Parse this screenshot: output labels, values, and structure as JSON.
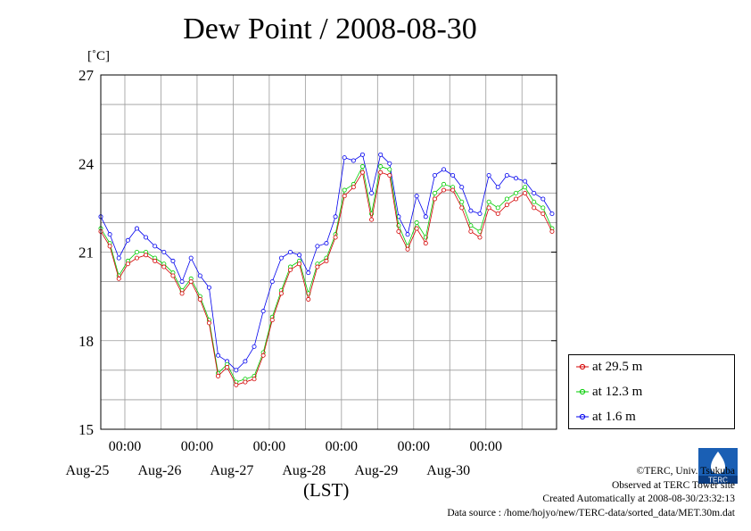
{
  "title": "Dew Point / 2008-08-30",
  "unit_label": "[˚C]",
  "x_axis_label": "(LST)",
  "credits": {
    "copyright": "©TERC, Univ. Tsukuba",
    "observed": "Observed at TERC Tower site",
    "created": "Created Automatically at 2008-08-30/23:32:13",
    "source": "Data source : /home/hojyo/new/TERC-data/sorted_data/MET.30m.dat"
  },
  "logo_text": "TERC",
  "colors": {
    "s1": "#d40000",
    "s2": "#00cc00",
    "s3": "#0000ee",
    "grid": "#9a9a9a"
  },
  "chart_data": {
    "type": "line",
    "title": "Dew Point / 2008-08-30",
    "ylabel": "[˚C]",
    "xlabel": "(LST)",
    "ylim": [
      15,
      27
    ],
    "yticks": [
      15,
      18,
      21,
      24,
      27
    ],
    "xlim_days": [
      "2008-08-24 16:00",
      "2008-08-30 23:30"
    ],
    "xticks": [
      {
        "top": "00:00",
        "bottom": "Aug-25",
        "at": "2008-08-25 00:00"
      },
      {
        "top": "00:00",
        "bottom": "Aug-26",
        "at": "2008-08-26 00:00"
      },
      {
        "top": "00:00",
        "bottom": "Aug-27",
        "at": "2008-08-27 00:00"
      },
      {
        "top": "00:00",
        "bottom": "Aug-28",
        "at": "2008-08-28 00:00"
      },
      {
        "top": "00:00",
        "bottom": "Aug-29",
        "at": "2008-08-29 00:00"
      },
      {
        "top": "00:00",
        "bottom": "Aug-30",
        "at": "2008-08-30 00:00"
      }
    ],
    "grid": true,
    "legend_position": "right",
    "x": [
      "08-24 16:00",
      "08-24 19:00",
      "08-24 22:00",
      "08-25 01:00",
      "08-25 04:00",
      "08-25 07:00",
      "08-25 10:00",
      "08-25 13:00",
      "08-25 16:00",
      "08-25 19:00",
      "08-25 22:00",
      "08-26 01:00",
      "08-26 04:00",
      "08-26 07:00",
      "08-26 10:00",
      "08-26 13:00",
      "08-26 16:00",
      "08-26 19:00",
      "08-26 22:00",
      "08-27 01:00",
      "08-27 04:00",
      "08-27 07:00",
      "08-27 10:00",
      "08-27 13:00",
      "08-27 16:00",
      "08-27 19:00",
      "08-27 22:00",
      "08-28 01:00",
      "08-28 04:00",
      "08-28 07:00",
      "08-28 10:00",
      "08-28 13:00",
      "08-28 16:00",
      "08-28 19:00",
      "08-28 22:00",
      "08-29 01:00",
      "08-29 04:00",
      "08-29 07:00",
      "08-29 10:00",
      "08-29 13:00",
      "08-29 16:00",
      "08-29 19:00",
      "08-29 22:00",
      "08-30 01:00",
      "08-30 04:00",
      "08-30 07:00",
      "08-30 10:00",
      "08-30 13:00",
      "08-30 16:00",
      "08-30 19:00",
      "08-30 22:00"
    ],
    "series": [
      {
        "name": "at 29.5 m",
        "color": "#d40000",
        "values": [
          21.7,
          21.2,
          20.1,
          20.6,
          20.8,
          20.9,
          20.7,
          20.5,
          20.2,
          19.6,
          20.0,
          19.4,
          18.6,
          16.8,
          17.1,
          16.5,
          16.6,
          16.7,
          17.5,
          18.7,
          19.6,
          20.4,
          20.6,
          19.4,
          20.5,
          20.7,
          21.5,
          22.9,
          23.2,
          23.7,
          22.1,
          23.7,
          23.6,
          21.7,
          21.1,
          21.8,
          21.3,
          22.8,
          23.1,
          23.1,
          22.5,
          21.7,
          21.5,
          22.5,
          22.3,
          22.6,
          22.8,
          23.0,
          22.5,
          22.3,
          21.7
        ]
      },
      {
        "name": "at 12.3 m",
        "color": "#00cc00",
        "values": [
          21.8,
          21.3,
          20.2,
          20.7,
          21.0,
          21.0,
          20.8,
          20.6,
          20.3,
          19.7,
          20.1,
          19.5,
          18.7,
          16.9,
          17.2,
          16.6,
          16.7,
          16.8,
          17.6,
          18.8,
          19.7,
          20.5,
          20.7,
          19.6,
          20.6,
          20.8,
          21.6,
          23.1,
          23.3,
          23.9,
          22.3,
          23.9,
          23.8,
          21.9,
          21.2,
          22.0,
          21.5,
          23.0,
          23.3,
          23.2,
          22.7,
          21.9,
          21.7,
          22.7,
          22.5,
          22.8,
          23.0,
          23.2,
          22.7,
          22.5,
          21.8
        ]
      },
      {
        "name": "at 1.6 m",
        "color": "#0000ee",
        "values": [
          22.2,
          21.6,
          20.8,
          21.4,
          21.8,
          21.5,
          21.2,
          21.0,
          20.7,
          20.0,
          20.8,
          20.2,
          19.8,
          17.5,
          17.3,
          17.0,
          17.3,
          17.8,
          19.0,
          20.0,
          20.8,
          21.0,
          20.9,
          20.3,
          21.2,
          21.3,
          22.2,
          24.2,
          24.1,
          24.3,
          23.0,
          24.3,
          24.0,
          22.2,
          21.6,
          22.9,
          22.2,
          23.6,
          23.8,
          23.6,
          23.2,
          22.4,
          22.3,
          23.6,
          23.2,
          23.6,
          23.5,
          23.4,
          23.0,
          22.8,
          22.3
        ]
      }
    ]
  }
}
